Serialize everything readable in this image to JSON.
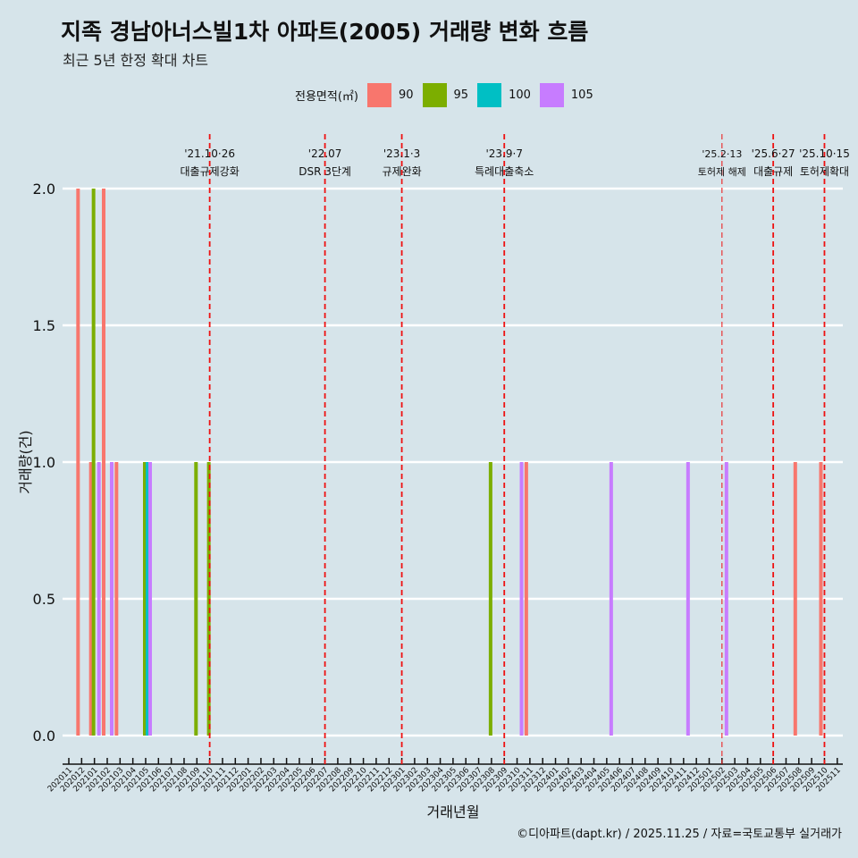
{
  "chart_data": {
    "type": "bar",
    "title": "지족 경남아너스빌1차 아파트(2005) 거래량 변화 흐름",
    "subtitle": "최근 5년 한정 확대 차트",
    "xlabel": "거래년월",
    "ylabel": "거래량(건)",
    "ylim": [
      0,
      2
    ],
    "yticks": [
      "0.0",
      "0.5",
      "1.0",
      "1.5",
      "2.0"
    ],
    "legend": {
      "title": "전용면적(㎡)",
      "placement": "top",
      "items": [
        {
          "name": "90",
          "color": "#f8766d"
        },
        {
          "name": "95",
          "color": "#7cae00"
        },
        {
          "name": "100",
          "color": "#00bfc4"
        },
        {
          "name": "105",
          "color": "#c77cff"
        }
      ]
    },
    "start": "202011",
    "months": 61,
    "bars": [
      {
        "month": "202012",
        "area": "90",
        "value": 2
      },
      {
        "month": "202101",
        "area": "90",
        "value": 1
      },
      {
        "month": "202101",
        "area": "95",
        "value": 2
      },
      {
        "month": "202101",
        "area": "105",
        "value": 1
      },
      {
        "month": "202102",
        "area": "105",
        "value": 1
      },
      {
        "month": "202102",
        "area": "90",
        "value": 2
      },
      {
        "month": "202103",
        "area": "90",
        "value": 1
      },
      {
        "month": "202105",
        "area": "95",
        "value": 1
      },
      {
        "month": "202105",
        "area": "100",
        "value": 1
      },
      {
        "month": "202105",
        "area": "105",
        "value": 1
      },
      {
        "month": "202109",
        "area": "95",
        "value": 1
      },
      {
        "month": "202110",
        "area": "95",
        "value": 1
      },
      {
        "month": "202308",
        "area": "95",
        "value": 1
      },
      {
        "month": "202310",
        "area": "105",
        "value": 1
      },
      {
        "month": "202311",
        "area": "90",
        "value": 1
      },
      {
        "month": "202405",
        "area": "105",
        "value": 1
      },
      {
        "month": "202411",
        "area": "105",
        "value": 1
      },
      {
        "month": "202502",
        "area": "105",
        "value": 1
      },
      {
        "month": "202508",
        "area": "90",
        "value": 1
      },
      {
        "month": "202510",
        "area": "90",
        "value": 1
      }
    ],
    "events": [
      {
        "month": "202110",
        "date": "'21.10·26",
        "label": "대출규제강화"
      },
      {
        "month": "202207",
        "date": "'22.07",
        "label": "DSR 3단계"
      },
      {
        "month": "202301",
        "date": "'23.1·3",
        "label": "규제완화"
      },
      {
        "month": "202309",
        "date": "'23.9·7",
        "label": "특례대출축소"
      },
      {
        "month": "202502",
        "date": "'25.2·13",
        "label": "토허제 해제",
        "thin": true
      },
      {
        "month": "202506",
        "date": "'25.6·27",
        "label": "대출규제"
      },
      {
        "month": "202510",
        "date": "'25.10·15",
        "label": "토허제확대"
      }
    ]
  },
  "caption": "©디아파트(dapt.kr) / 2025.11.25 / 자료=국토교통부 실거래가"
}
